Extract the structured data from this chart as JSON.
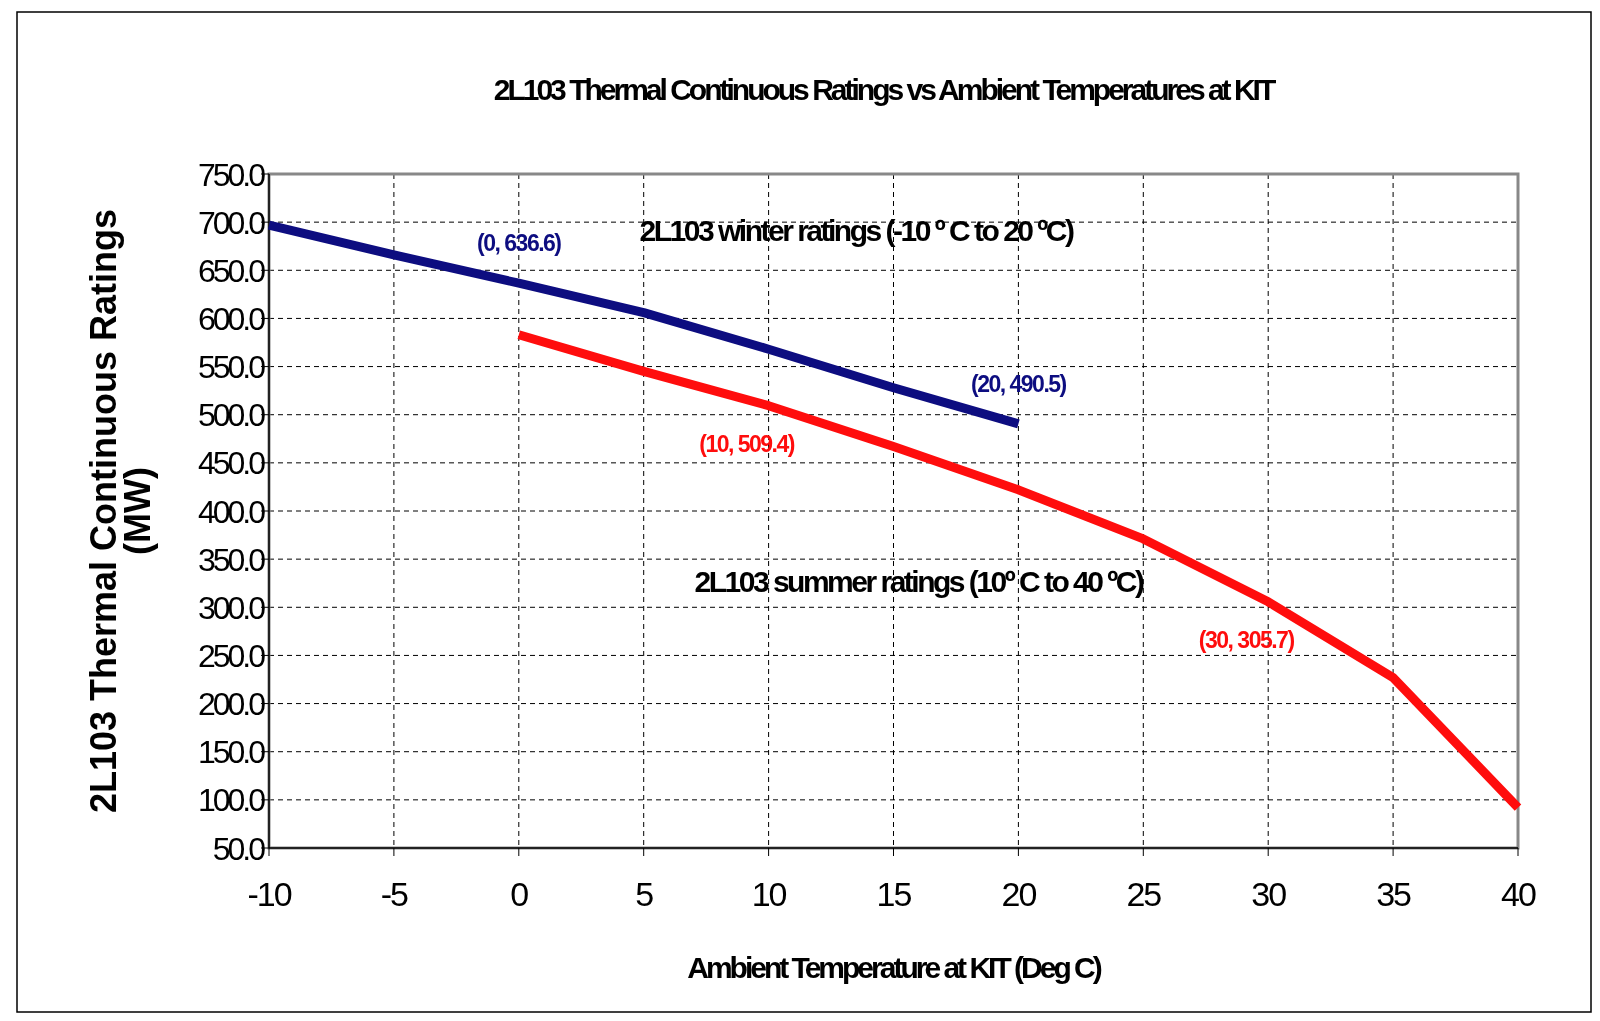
{
  "chart_data": {
    "type": "line",
    "title": "2L103 Thermal Continuous Ratings vs Ambient Temperatures at KIT",
    "xlabel": "Ambient Temperature at KIT (Deg C)",
    "ylabel": "2L103 Thermal Continuous Ratings\n(MW)",
    "series": [
      {
        "name": "2L103 winter ratings (-10 º C to 20 ºC)",
        "color": "#0d0d80",
        "x": [
          -10,
          -5,
          0,
          5,
          10,
          15,
          20
        ],
        "values": [
          697,
          666,
          636.6,
          606,
          568,
          528,
          490.5
        ]
      },
      {
        "name": "2L103 summer ratings (10º C to 40 ºC)",
        "color": "#ff0d0d",
        "x": [
          0,
          5,
          10,
          15,
          20,
          25,
          30,
          35,
          40
        ],
        "values": [
          583,
          545,
          509.4,
          467,
          422,
          371,
          305.7,
          227,
          92
        ]
      }
    ],
    "annotations": [
      {
        "text": "(0, 636.6)",
        "x": 0,
        "y": 636.6
      },
      {
        "text": "(20, 490.5)",
        "x": 20,
        "y": 490.5
      },
      {
        "text": "(10, 509.4)",
        "x": 10,
        "y": 509.4
      },
      {
        "text": "(30, 305.7)",
        "x": 30,
        "y": 305.7
      }
    ],
    "xlim": [
      -10,
      40
    ],
    "xticks": [
      -10,
      -5,
      0,
      5,
      10,
      15,
      20,
      25,
      30,
      35,
      40
    ],
    "ylim": [
      50,
      750
    ],
    "yticks": [
      {
        "value": 50,
        "label": "50.0"
      },
      {
        "value": 100,
        "label": "100.0"
      },
      {
        "value": 150,
        "label": "150.0"
      },
      {
        "value": 200,
        "label": "200.0"
      },
      {
        "value": 250,
        "label": "250.0"
      },
      {
        "value": 300,
        "label": "300.0"
      },
      {
        "value": 350,
        "label": "350.0"
      },
      {
        "value": 400,
        "label": "400.0"
      },
      {
        "value": 450,
        "label": "450.0"
      },
      {
        "value": 500,
        "label": "500.0"
      },
      {
        "value": 550,
        "label": "550.0"
      },
      {
        "value": 600,
        "label": "600.0"
      },
      {
        "value": 650,
        "label": "650.0"
      },
      {
        "value": 700,
        "label": "700.0"
      },
      {
        "value": 750,
        "label": "750.0"
      }
    ],
    "grid": true,
    "marker": "none",
    "line_style": "solid"
  }
}
